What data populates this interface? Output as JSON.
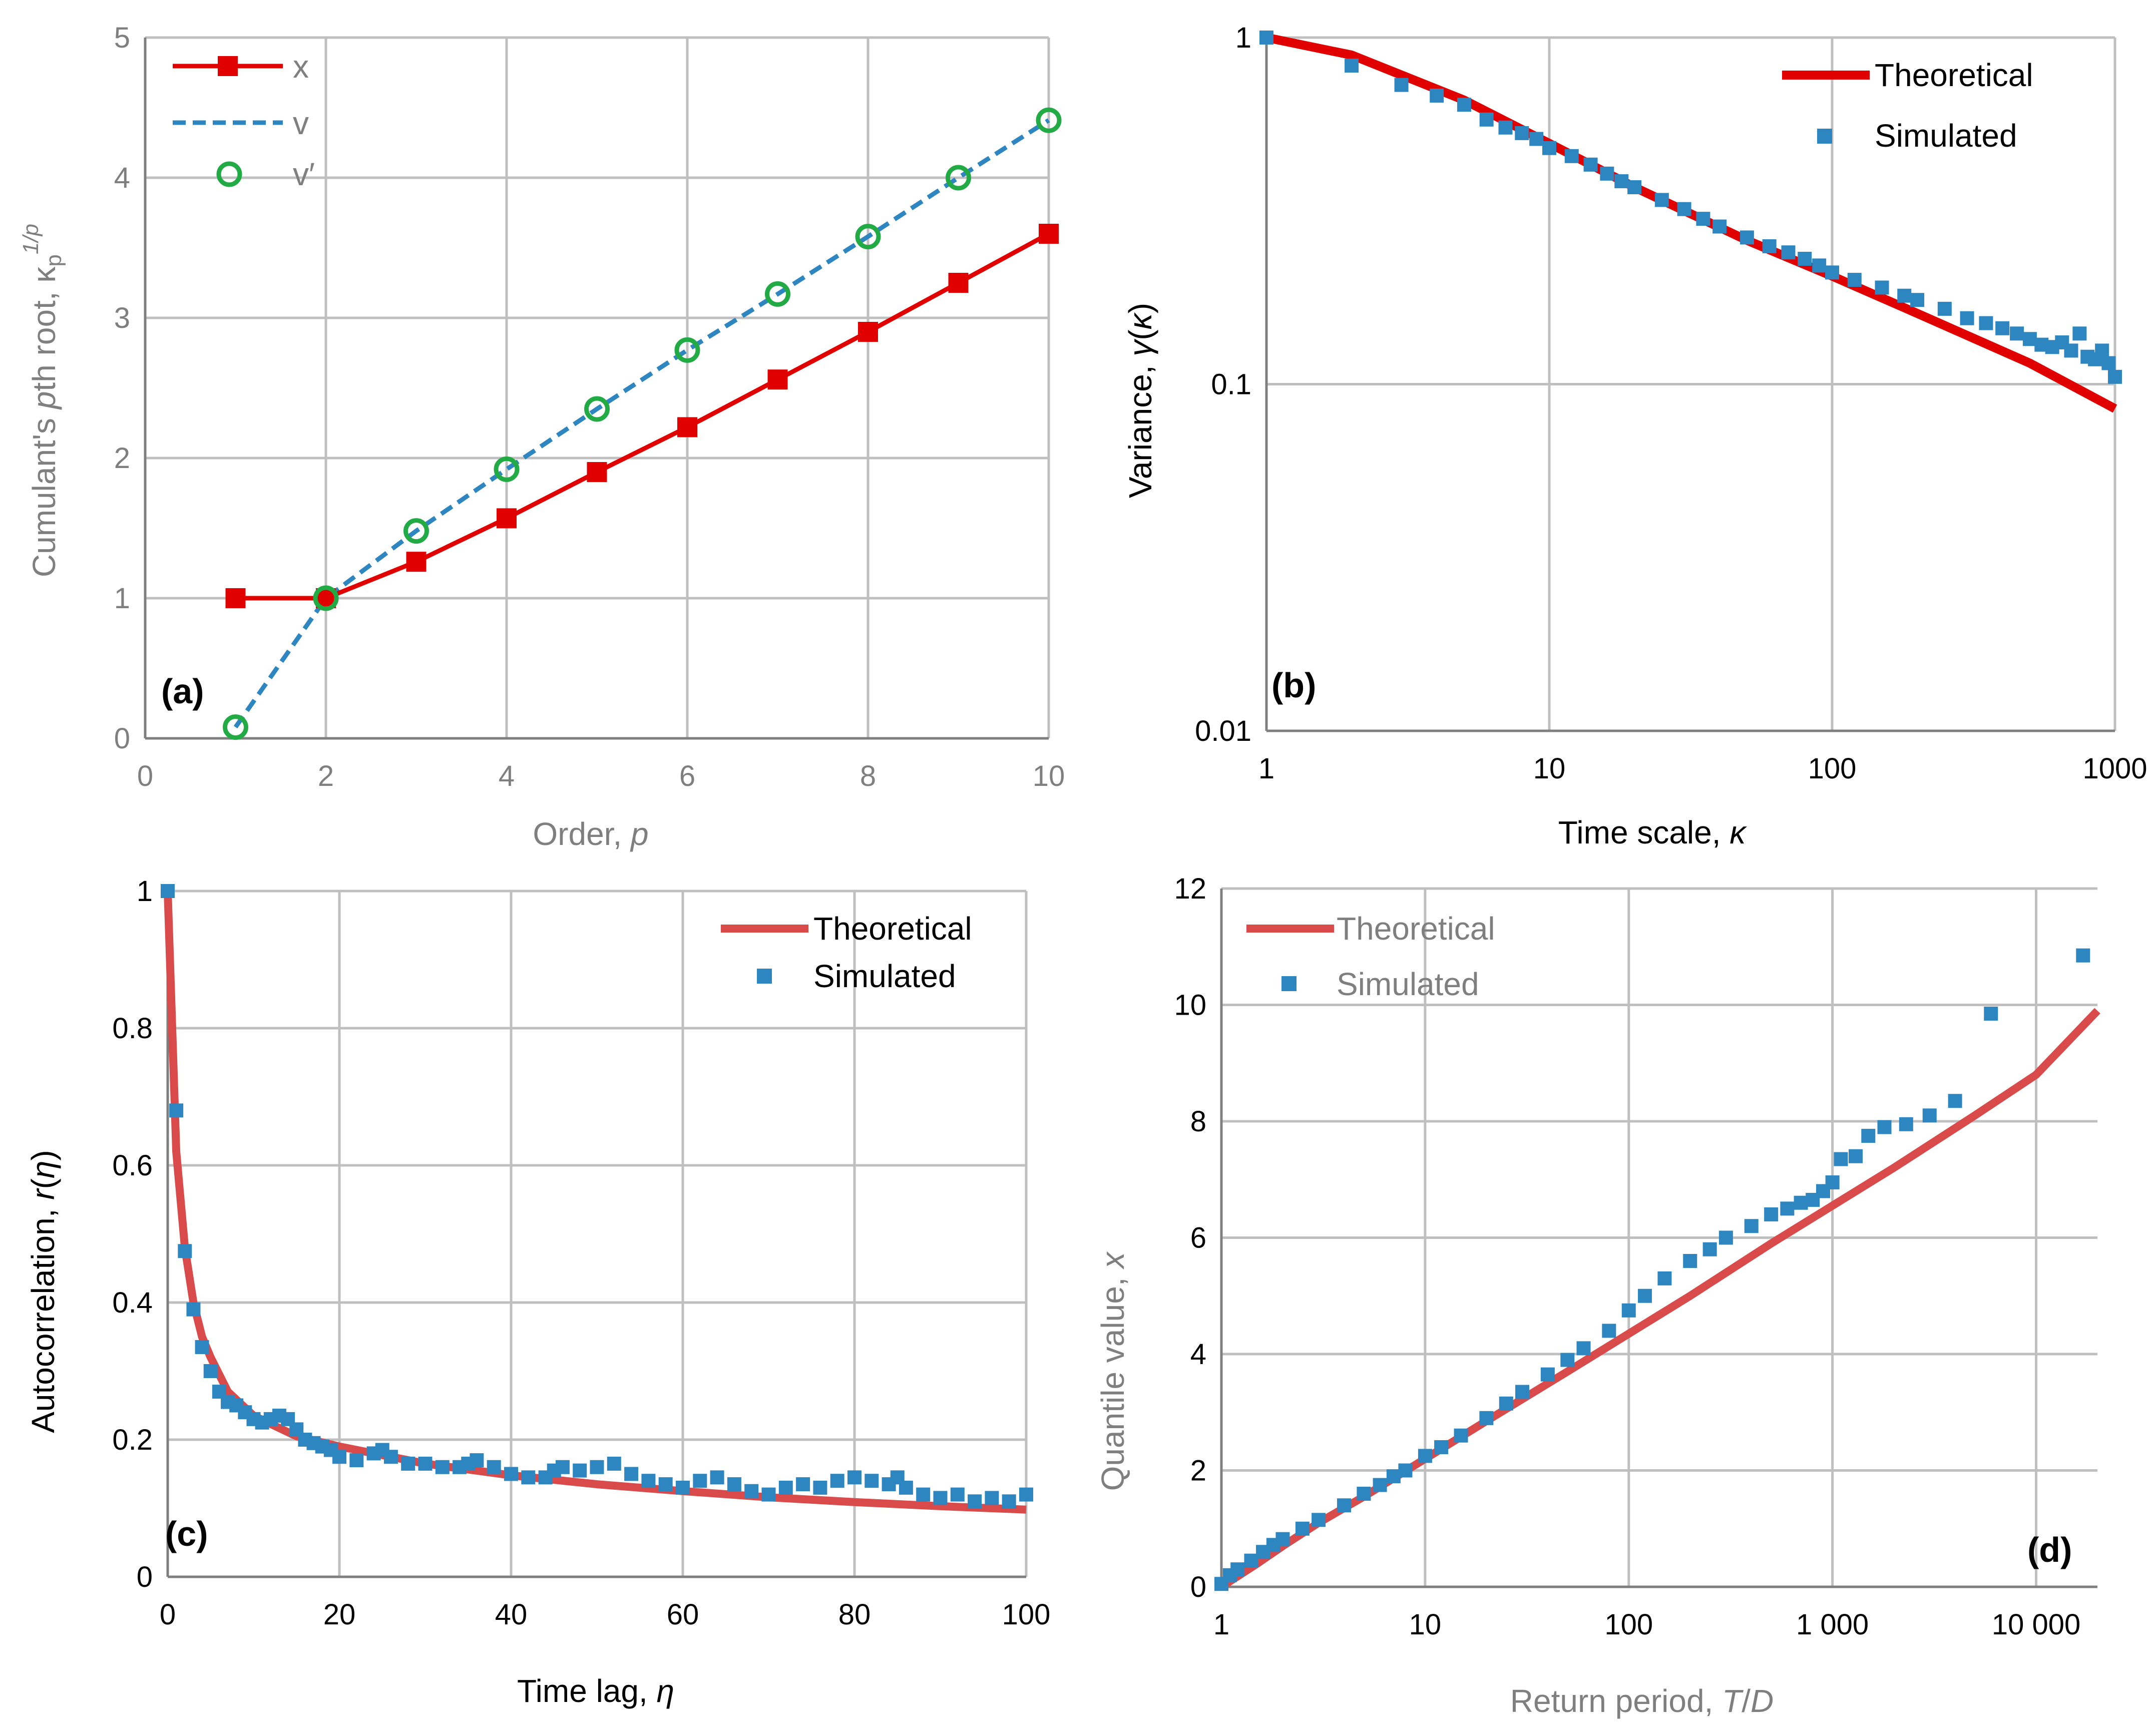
{
  "chart_data": [
    {
      "panel": "(a)",
      "type": "line",
      "xlabel": "Order, p",
      "ylabel": "Cumulant's pth root, κp^1/p",
      "xlim": [
        0,
        10
      ],
      "ylim": [
        0,
        5
      ],
      "xticks": [
        "0",
        "2",
        "4",
        "6",
        "8",
        "10"
      ],
      "yticks": [
        "0",
        "1",
        "2",
        "3",
        "4",
        "5"
      ],
      "grid": true,
      "legend_position": "top-left",
      "x": [
        1,
        2,
        3,
        4,
        5,
        6,
        7,
        8,
        9,
        10
      ],
      "series": [
        {
          "name": "x",
          "style": "solid line with square markers",
          "color": "#e00000",
          "values": [
            1.0,
            1.0,
            1.26,
            1.57,
            1.9,
            2.22,
            2.56,
            2.9,
            3.25,
            3.6
          ]
        },
        {
          "name": "v",
          "style": "dashed line",
          "color": "#2e86c1",
          "values": [
            0.08,
            1.0,
            1.48,
            1.92,
            2.35,
            2.77,
            3.17,
            3.58,
            4.0,
            4.41
          ]
        },
        {
          "name": "v′",
          "style": "open circle markers",
          "color": "#22aa44",
          "values": [
            0.08,
            1.0,
            1.48,
            1.92,
            2.35,
            2.77,
            3.17,
            3.58,
            4.0,
            4.41
          ]
        }
      ]
    },
    {
      "panel": "(b)",
      "type": "scatter",
      "xscale": "log",
      "yscale": "log",
      "xlabel": "Time scale, κ",
      "ylabel": "Variance, γ(κ)",
      "xlim": [
        1,
        1000
      ],
      "ylim": [
        0.01,
        1
      ],
      "xticks": [
        "1",
        "10",
        "100",
        "1000"
      ],
      "yticks": [
        "0.01",
        "0.1",
        "1"
      ],
      "grid": true,
      "legend_position": "top-right",
      "series": [
        {
          "name": "Theoretical",
          "style": "thick line",
          "color": "#e00000",
          "x": [
            1,
            2,
            5,
            10,
            20,
            50,
            100,
            200,
            500,
            1000
          ],
          "values": [
            1.0,
            0.89,
            0.66,
            0.495,
            0.37,
            0.26,
            0.205,
            0.16,
            0.115,
            0.085
          ]
        },
        {
          "name": "Simulated",
          "style": "square markers",
          "color": "#2e86c1",
          "x": [
            1,
            2,
            3,
            4,
            5,
            6,
            7,
            8,
            9,
            10,
            12,
            14,
            16,
            18,
            20,
            25,
            30,
            35,
            40,
            50,
            60,
            70,
            80,
            90,
            100,
            120,
            150,
            180,
            200,
            250,
            300,
            350,
            400,
            450,
            500,
            550,
            600,
            650,
            700,
            750,
            800,
            850,
            900,
            950,
            1000
          ],
          "values": [
            1.0,
            0.83,
            0.73,
            0.68,
            0.64,
            0.58,
            0.55,
            0.53,
            0.51,
            0.48,
            0.455,
            0.43,
            0.405,
            0.385,
            0.37,
            0.34,
            0.32,
            0.3,
            0.285,
            0.265,
            0.25,
            0.24,
            0.23,
            0.22,
            0.21,
            0.2,
            0.19,
            0.18,
            0.175,
            0.165,
            0.155,
            0.15,
            0.145,
            0.14,
            0.135,
            0.13,
            0.128,
            0.132,
            0.125,
            0.14,
            0.12,
            0.118,
            0.125,
            0.115,
            0.105
          ]
        }
      ]
    },
    {
      "panel": "(c)",
      "type": "scatter",
      "xlabel": "Time lag, η",
      "ylabel": "Autocorrelation, r(η)",
      "xlim": [
        0,
        100
      ],
      "ylim": [
        0,
        1
      ],
      "xticks": [
        "0",
        "20",
        "40",
        "60",
        "80",
        "100"
      ],
      "yticks": [
        "0",
        "0.2",
        "0.4",
        "0.6",
        "0.8",
        "1"
      ],
      "grid": true,
      "legend_position": "top-right",
      "series": [
        {
          "name": "Theoretical",
          "style": "thick line",
          "color": "#d94a4a",
          "x": [
            0,
            1,
            2,
            3,
            4,
            5,
            7,
            10,
            15,
            20,
            30,
            40,
            50,
            60,
            70,
            80,
            90,
            100
          ],
          "values": [
            1.0,
            0.62,
            0.48,
            0.4,
            0.35,
            0.32,
            0.27,
            0.235,
            0.205,
            0.19,
            0.165,
            0.148,
            0.135,
            0.125,
            0.116,
            0.109,
            0.103,
            0.098
          ]
        },
        {
          "name": "Simulated",
          "style": "square markers",
          "color": "#2e86c1",
          "x": [
            0,
            1,
            2,
            3,
            4,
            5,
            6,
            7,
            8,
            9,
            10,
            11,
            12,
            13,
            14,
            15,
            16,
            17,
            18,
            19,
            20,
            22,
            24,
            25,
            26,
            28,
            30,
            32,
            34,
            35,
            36,
            38,
            40,
            42,
            44,
            45,
            46,
            48,
            50,
            52,
            54,
            56,
            58,
            60,
            62,
            64,
            66,
            68,
            70,
            72,
            74,
            76,
            78,
            80,
            82,
            84,
            85,
            86,
            88,
            90,
            92,
            94,
            96,
            98,
            100
          ],
          "values": [
            1.0,
            0.68,
            0.475,
            0.39,
            0.335,
            0.3,
            0.27,
            0.255,
            0.25,
            0.24,
            0.23,
            0.225,
            0.23,
            0.235,
            0.23,
            0.215,
            0.2,
            0.195,
            0.19,
            0.185,
            0.175,
            0.17,
            0.18,
            0.185,
            0.175,
            0.165,
            0.165,
            0.16,
            0.16,
            0.165,
            0.17,
            0.16,
            0.15,
            0.145,
            0.145,
            0.155,
            0.16,
            0.155,
            0.16,
            0.165,
            0.15,
            0.14,
            0.135,
            0.13,
            0.14,
            0.145,
            0.135,
            0.125,
            0.12,
            0.13,
            0.135,
            0.13,
            0.14,
            0.145,
            0.14,
            0.135,
            0.145,
            0.13,
            0.12,
            0.115,
            0.12,
            0.11,
            0.115,
            0.11,
            0.12
          ]
        }
      ]
    },
    {
      "panel": "(d)",
      "type": "scatter",
      "xscale": "log",
      "xlabel": "Return period, T/D",
      "ylabel": "Quantile value, x",
      "xlim": [
        1,
        20000
      ],
      "ylim": [
        0,
        12
      ],
      "xticks": [
        "1",
        "10",
        "100",
        "1 000",
        "10 000"
      ],
      "yticks": [
        "0",
        "2",
        "4",
        "6",
        "8",
        "10",
        "12"
      ],
      "grid": true,
      "legend_position": "top-left",
      "series": [
        {
          "name": "Theoretical",
          "style": "thick line",
          "color": "#d94a4a",
          "x": [
            1,
            1.5,
            2,
            3,
            5,
            10,
            20,
            50,
            100,
            200,
            500,
            1000,
            2000,
            5000,
            10000,
            20000
          ],
          "values": [
            0.0,
            0.4,
            0.7,
            1.1,
            1.55,
            2.2,
            2.85,
            3.7,
            4.35,
            5.0,
            5.9,
            6.55,
            7.2,
            8.1,
            8.8,
            9.9
          ]
        },
        {
          "name": "Simulated",
          "style": "square markers",
          "color": "#2e86c1",
          "x": [
            1,
            1.1,
            1.2,
            1.4,
            1.6,
            1.8,
            2,
            2.5,
            3,
            4,
            5,
            6,
            7,
            8,
            10,
            12,
            15,
            20,
            25,
            30,
            40,
            50,
            60,
            80,
            100,
            120,
            150,
            200,
            250,
            300,
            400,
            500,
            600,
            700,
            800,
            900,
            1000,
            1100,
            1300,
            1500,
            1800,
            2300,
            3000,
            4000,
            6000,
            17000
          ],
          "values": [
            0.05,
            0.2,
            0.3,
            0.45,
            0.6,
            0.72,
            0.82,
            1.0,
            1.15,
            1.4,
            1.6,
            1.75,
            1.9,
            2.0,
            2.25,
            2.4,
            2.6,
            2.9,
            3.15,
            3.35,
            3.65,
            3.9,
            4.1,
            4.4,
            4.75,
            5.0,
            5.3,
            5.6,
            5.8,
            6.0,
            6.2,
            6.4,
            6.5,
            6.6,
            6.65,
            6.8,
            6.95,
            7.35,
            7.4,
            7.75,
            7.9,
            7.95,
            8.1,
            8.35,
            9.85,
            10.85
          ]
        }
      ]
    }
  ]
}
